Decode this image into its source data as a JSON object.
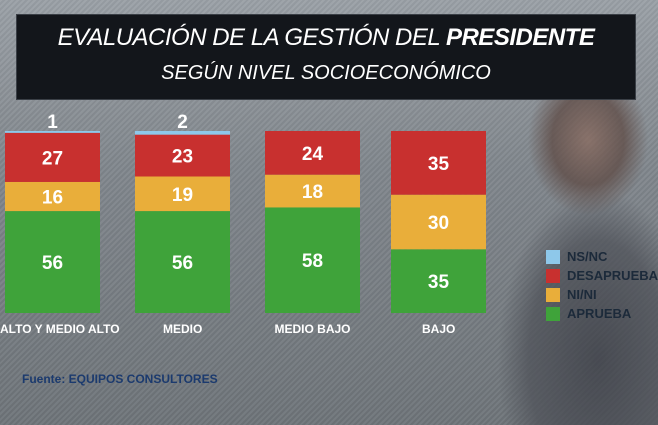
{
  "title_main": "EVALUACIÓN DE LA GESTIÓN DEL",
  "title_bold": "PRESIDENTE",
  "subtitle": "SEGÚN NIVEL SOCIOECONÓMICO",
  "source": "Fuente: EQUIPOS CONSULTORES",
  "chart_data": {
    "type": "bar",
    "stacked": true,
    "categories": [
      "ALTO Y MEDIO ALTO",
      "MEDIO",
      "MEDIO BAJO",
      "BAJO"
    ],
    "series": [
      {
        "name": "APRUEBA",
        "color": "#3fa33a",
        "values": [
          56,
          56,
          58,
          35
        ]
      },
      {
        "name": "NI/NI",
        "color": "#e9ae3a",
        "values": [
          16,
          19,
          18,
          30
        ]
      },
      {
        "name": "DESAPRUEBA",
        "color": "#c8302f",
        "values": [
          27,
          23,
          24,
          35
        ]
      },
      {
        "name": "NS/NC",
        "color": "#8ec8ea",
        "values": [
          1,
          2,
          0,
          0
        ]
      }
    ],
    "legend_order": [
      "NS/NC",
      "DESAPRUEBA",
      "NI/NI",
      "APRUEBA"
    ],
    "legend_position": "right",
    "ylim": [
      0,
      100
    ],
    "grid": false
  }
}
